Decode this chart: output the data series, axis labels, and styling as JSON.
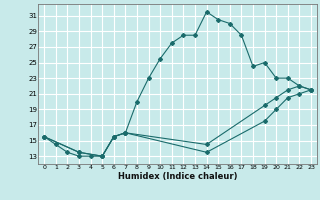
{
  "xlabel": "Humidex (Indice chaleur)",
  "bg_color": "#c8eaea",
  "grid_color": "#ffffff",
  "line_color": "#1a6b6b",
  "xlim": [
    -0.5,
    23.5
  ],
  "ylim": [
    12.0,
    32.5
  ],
  "yticks": [
    13,
    15,
    17,
    19,
    21,
    23,
    25,
    27,
    29,
    31
  ],
  "xticks": [
    0,
    1,
    2,
    3,
    4,
    5,
    6,
    7,
    8,
    9,
    10,
    11,
    12,
    13,
    14,
    15,
    16,
    17,
    18,
    19,
    20,
    21,
    22,
    23
  ],
  "line1_x": [
    0,
    1,
    2,
    3,
    4,
    5,
    6,
    7,
    8,
    9,
    10,
    11,
    12,
    13,
    14,
    15,
    16,
    17,
    18,
    19,
    20,
    21,
    22,
    23
  ],
  "line1_y": [
    15.5,
    14.5,
    13.5,
    13.0,
    13.0,
    13.0,
    15.5,
    16.0,
    20.0,
    23.0,
    25.5,
    27.5,
    28.5,
    28.5,
    31.5,
    30.5,
    30.0,
    28.5,
    24.5,
    25.0,
    23.0,
    23.0,
    22.0,
    21.5
  ],
  "line2_x": [
    0,
    3,
    5,
    6,
    7,
    14,
    19,
    20,
    21,
    22,
    23
  ],
  "line2_y": [
    15.5,
    13.5,
    13.0,
    15.5,
    16.0,
    14.5,
    19.5,
    20.5,
    21.5,
    22.0,
    21.5
  ],
  "line3_x": [
    0,
    3,
    5,
    6,
    7,
    14,
    19,
    20,
    21,
    22,
    23
  ],
  "line3_y": [
    15.5,
    13.5,
    13.0,
    15.5,
    16.0,
    13.5,
    17.5,
    19.0,
    20.5,
    21.0,
    21.5
  ]
}
